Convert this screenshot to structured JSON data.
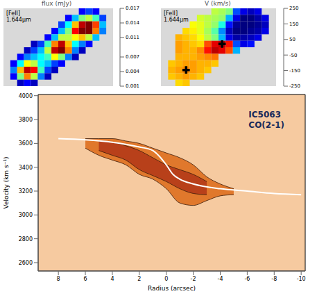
{
  "chart_data": [
    {
      "type": "heatmap",
      "title": "flux (mJy)",
      "annotations": [
        "[FeII]",
        "1.644μm"
      ],
      "tick_labels": false,
      "colorbar_range": [
        0.001,
        0.017
      ],
      "colorbar_ticks": [
        0.017,
        0.014,
        0.011,
        0.007,
        0.004,
        0.001
      ],
      "cells": [
        [
          null,
          null,
          null,
          null,
          null,
          null,
          null,
          null,
          null,
          null,
          null,
          0.003,
          0.004,
          0.003,
          null,
          null
        ],
        [
          null,
          null,
          null,
          null,
          null,
          null,
          null,
          null,
          null,
          0.003,
          0.006,
          0.009,
          0.01,
          0.008,
          0.004,
          null
        ],
        [
          null,
          null,
          null,
          null,
          null,
          null,
          null,
          null,
          0.004,
          0.007,
          0.012,
          0.016,
          0.017,
          0.014,
          0.006,
          null
        ],
        [
          null,
          null,
          null,
          null,
          null,
          null,
          null,
          0.003,
          0.006,
          0.009,
          0.015,
          0.017,
          0.017,
          0.013,
          0.005,
          null
        ],
        [
          null,
          null,
          null,
          null,
          null,
          null,
          0.003,
          0.006,
          0.01,
          0.01,
          0.011,
          0.012,
          0.01,
          0.006,
          null,
          null
        ],
        [
          null,
          null,
          null,
          null,
          0.002,
          0.004,
          0.008,
          0.013,
          0.016,
          0.012,
          0.007,
          0.005,
          0.003,
          null,
          null,
          null
        ],
        [
          null,
          null,
          null,
          0.002,
          0.004,
          0.006,
          0.01,
          0.016,
          0.017,
          0.013,
          0.005,
          0.002,
          null,
          null,
          null,
          null
        ],
        [
          null,
          null,
          0.003,
          0.005,
          0.006,
          0.007,
          0.008,
          0.011,
          0.009,
          0.005,
          0.002,
          null,
          null,
          null,
          null,
          null
        ],
        [
          null,
          0.003,
          0.007,
          0.011,
          0.01,
          0.007,
          0.006,
          0.004,
          0.003,
          null,
          null,
          null,
          null,
          null,
          null,
          null
        ],
        [
          null,
          0.005,
          0.012,
          0.016,
          0.015,
          0.008,
          0.004,
          0.002,
          null,
          null,
          null,
          null,
          null,
          null,
          null,
          null
        ],
        [
          null,
          0.003,
          0.009,
          0.013,
          0.01,
          0.005,
          0.002,
          null,
          null,
          null,
          null,
          null,
          null,
          null,
          null,
          null
        ],
        [
          null,
          null,
          0.002,
          0.003,
          0.002,
          null,
          null,
          null,
          null,
          null,
          null,
          null,
          null,
          null,
          null,
          null
        ]
      ]
    },
    {
      "type": "heatmap",
      "title": "V (km/s)",
      "annotations": [
        "[FeII]",
        "1.644μm"
      ],
      "tick_labels": false,
      "colorbar_range": [
        -250,
        250
      ],
      "colorbar_ticks": [
        250,
        150,
        50,
        -50,
        -150,
        -250
      ],
      "marker": "cross",
      "markers": [
        {
          "x": 3,
          "y": 9
        },
        {
          "x": 8,
          "y": 5
        }
      ],
      "cells": [
        [
          null,
          null,
          null,
          null,
          null,
          null,
          null,
          30,
          20,
          0,
          -150,
          -200,
          -220,
          -200,
          null,
          null
        ],
        [
          null,
          null,
          null,
          null,
          null,
          40,
          30,
          20,
          10,
          -100,
          -200,
          -250,
          -250,
          -230,
          -200,
          null
        ],
        [
          null,
          null,
          null,
          null,
          60,
          50,
          30,
          10,
          -50,
          -180,
          -240,
          -250,
          -250,
          -240,
          -220,
          null
        ],
        [
          null,
          null,
          null,
          80,
          70,
          50,
          20,
          -20,
          -120,
          -220,
          -250,
          -250,
          -240,
          -230,
          -200,
          null
        ],
        [
          null,
          null,
          100,
          90,
          80,
          60,
          30,
          0,
          -100,
          -200,
          -230,
          -230,
          -220,
          -200,
          null,
          null
        ],
        [
          null,
          null,
          110,
          100,
          90,
          80,
          150,
          200,
          220,
          180,
          -150,
          -200,
          -180,
          null,
          null,
          null
        ],
        [
          null,
          null,
          110,
          100,
          100,
          120,
          180,
          220,
          200,
          150,
          -100,
          null,
          null,
          null,
          null,
          null
        ],
        [
          null,
          null,
          100,
          100,
          100,
          110,
          120,
          130,
          null,
          null,
          null,
          null,
          null,
          null,
          null,
          null
        ],
        [
          null,
          90,
          100,
          110,
          110,
          100,
          100,
          90,
          null,
          null,
          null,
          null,
          null,
          null,
          null,
          null
        ],
        [
          null,
          100,
          110,
          120,
          110,
          100,
          90,
          null,
          null,
          null,
          null,
          null,
          null,
          null,
          null,
          null
        ],
        [
          null,
          90,
          100,
          110,
          100,
          90,
          null,
          null,
          null,
          null,
          null,
          null,
          null,
          null,
          null,
          null
        ],
        [
          null,
          null,
          80,
          90,
          null,
          null,
          null,
          null,
          null,
          null,
          null,
          null,
          null,
          null,
          null,
          null
        ]
      ]
    },
    {
      "type": "area",
      "x_label": "Radius (arcsec)",
      "y_label": "Velocity (km s⁻¹)",
      "annotations": [
        "IC5063",
        "CO(2-1)"
      ],
      "xlim": [
        9.5,
        -10.3
      ],
      "xticks": [
        8,
        6,
        4,
        2,
        0,
        -2,
        -4,
        -6,
        -8,
        -10
      ],
      "ylim": [
        2530,
        4010
      ],
      "yticks": [
        2600,
        2800,
        3000,
        3200,
        3400,
        3600,
        3800,
        4000
      ],
      "series": [
        {
          "type": "range",
          "color": "#e0782c",
          "x": [
            6,
            5,
            4,
            3,
            2,
            1,
            0,
            -1,
            -2,
            -3,
            -4,
            -5
          ],
          "lower": [
            3560,
            3500,
            3460,
            3420,
            3340,
            3300,
            3220,
            3100,
            3080,
            3120,
            3160,
            3170
          ],
          "upper": [
            3640,
            3640,
            3640,
            3620,
            3600,
            3560,
            3520,
            3480,
            3420,
            3320,
            3260,
            3220
          ]
        },
        {
          "type": "range",
          "color": "#b8401a",
          "x": [
            5,
            4,
            3,
            2,
            1,
            0,
            -1,
            -2,
            -3
          ],
          "lower": [
            3540,
            3500,
            3460,
            3380,
            3330,
            3280,
            3220,
            3180,
            3170
          ],
          "upper": [
            3620,
            3610,
            3580,
            3540,
            3480,
            3420,
            3380,
            3340,
            3280
          ]
        },
        {
          "type": "line",
          "color": "#ffffff",
          "x": [
            8,
            6,
            4,
            2,
            1,
            0.5,
            0,
            -0.5,
            -1,
            -2,
            -4,
            -6,
            -8,
            -10
          ],
          "values": [
            3640,
            3630,
            3610,
            3570,
            3540,
            3490,
            3420,
            3340,
            3300,
            3260,
            3220,
            3200,
            3180,
            3170
          ]
        }
      ]
    }
  ]
}
